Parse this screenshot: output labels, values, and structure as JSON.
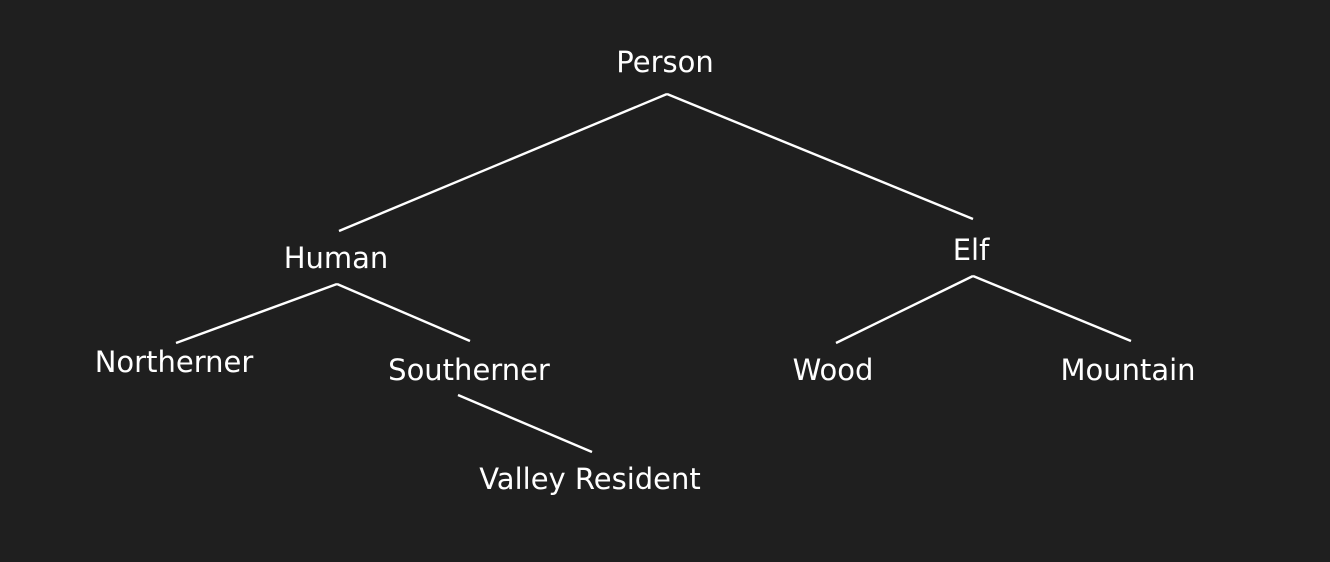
{
  "colors": {
    "background": "#1f1f1f",
    "line": "#ffffff",
    "text": "#ffffff"
  },
  "tree": {
    "root": "Person",
    "human": "Human",
    "elf": "Elf",
    "northerner": "Northerner",
    "southerner": "Southerner",
    "valley_resident": "Valley Resident",
    "wood": "Wood",
    "mountain": "Mountain"
  },
  "edges": [
    {
      "from": "root",
      "to": "human"
    },
    {
      "from": "root",
      "to": "elf"
    },
    {
      "from": "human",
      "to": "northerner"
    },
    {
      "from": "human",
      "to": "southerner"
    },
    {
      "from": "southerner",
      "to": "valley_resident"
    },
    {
      "from": "elf",
      "to": "wood"
    },
    {
      "from": "elf",
      "to": "mountain"
    }
  ]
}
